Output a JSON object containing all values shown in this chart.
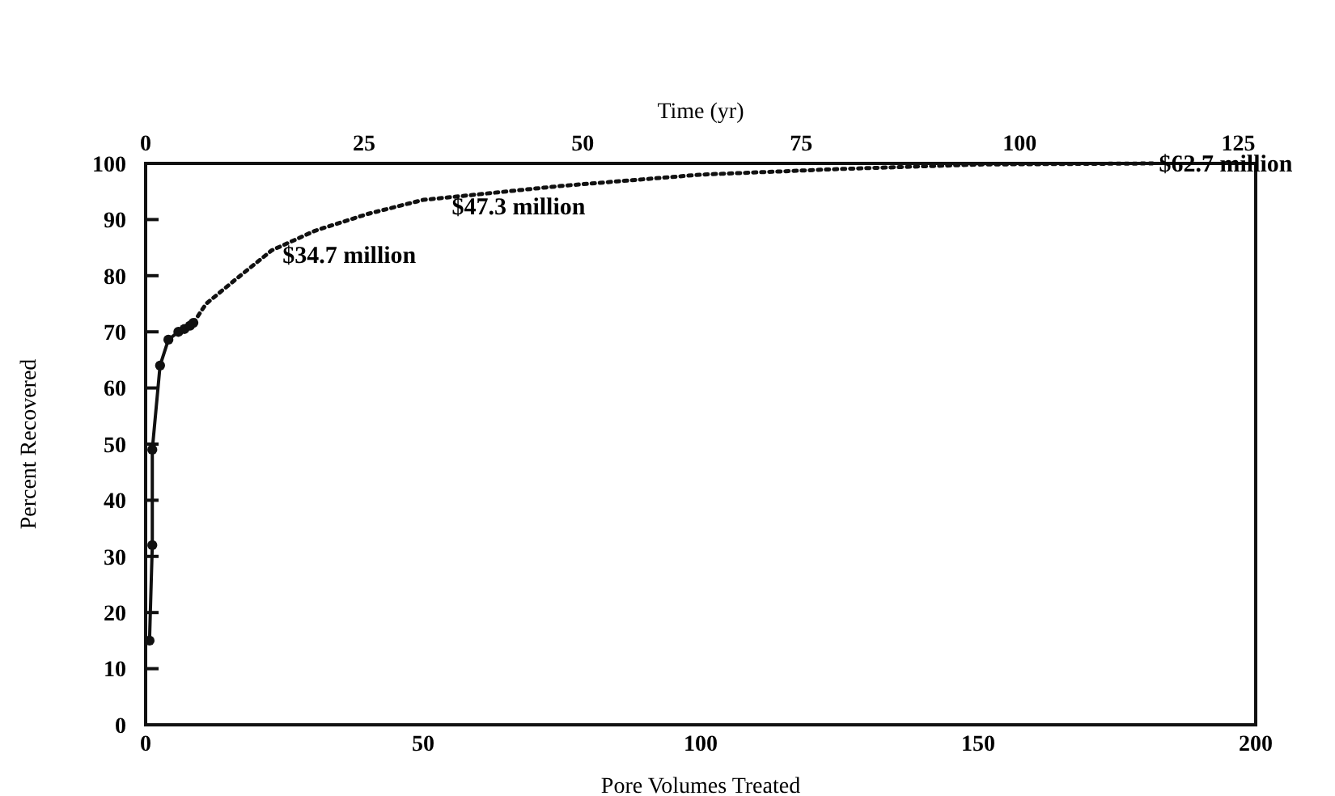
{
  "chart_data": {
    "type": "line",
    "xlabel": "Pore Volumes Treated",
    "ylabel": "Percent Recovered",
    "x2label": "Time (yr)",
    "xlim": [
      0,
      200
    ],
    "xticks": [
      0,
      50,
      100,
      150,
      200
    ],
    "x2lim": [
      0,
      127
    ],
    "x2ticks": [
      0,
      25,
      50,
      75,
      100,
      125
    ],
    "ylim": [
      0,
      100
    ],
    "yticks": [
      0,
      10,
      20,
      30,
      40,
      50,
      60,
      70,
      80,
      90,
      100
    ],
    "series": [
      {
        "color": "#111111",
        "marker": "circle",
        "line_style": "solid",
        "x": [
          0.7,
          1.2,
          1.2,
          2.6,
          4.1,
          5.9,
          7,
          8,
          8.6
        ],
        "values": [
          15,
          32,
          49,
          64,
          68.6,
          70,
          70.5,
          71.1,
          71.6
        ]
      },
      {
        "color": "#111111",
        "marker": "none",
        "line_style": "dotted",
        "x": [
          8.6,
          10.9,
          15.8,
          22.7,
          30.5,
          40,
          50,
          75,
          100,
          125,
          150,
          182
        ],
        "values": [
          71.6,
          75,
          79,
          84.5,
          88,
          91,
          93.5,
          96,
          98,
          99,
          99.8,
          100
        ]
      }
    ],
    "annotations": [
      {
        "text": "$34.7 million",
        "x": 30.5,
        "y": 88
      },
      {
        "text": "$47.3 million",
        "x": 61,
        "y": 95
      },
      {
        "text": "$62.7 million",
        "x": 182,
        "y": 100
      }
    ]
  }
}
